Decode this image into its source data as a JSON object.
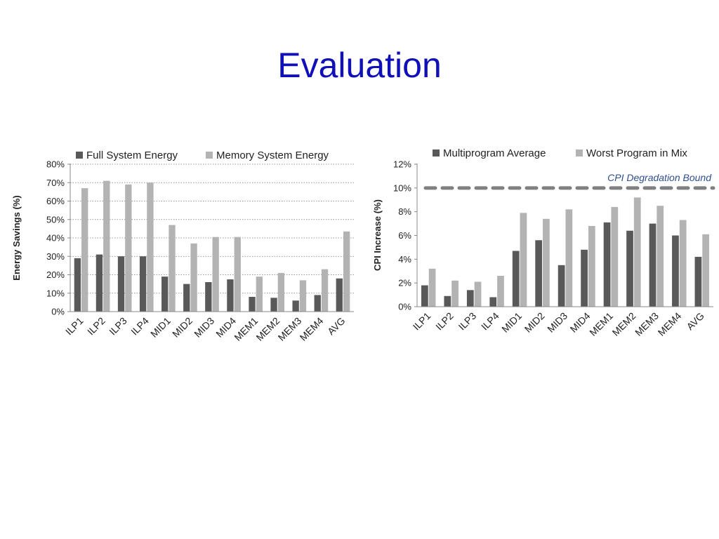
{
  "slide": {
    "title": "Evaluation"
  },
  "chart_data": [
    {
      "type": "bar",
      "categories": [
        "ILP1",
        "ILP2",
        "ILP3",
        "ILP4",
        "MID1",
        "MID2",
        "MID3",
        "MID4",
        "MEM1",
        "MEM2",
        "MEM3",
        "MEM4",
        "AVG"
      ],
      "series": [
        {
          "name": "Full System Energy",
          "color": "#595959",
          "values": [
            29,
            31,
            30,
            30,
            19,
            15,
            16,
            17.5,
            8,
            7.5,
            6,
            9,
            18
          ]
        },
        {
          "name": "Memory System Energy",
          "color": "#b3b3b3",
          "values": [
            67,
            71,
            69,
            70,
            47,
            37,
            40.5,
            40.5,
            19,
            21,
            17,
            23,
            43.5
          ]
        }
      ],
      "title": "",
      "xlabel": "",
      "ylabel": "Energy Savings (%)",
      "ylim": [
        0,
        80
      ],
      "yticks": [
        "0%",
        "10%",
        "20%",
        "30%",
        "40%",
        "50%",
        "60%",
        "70%",
        "80%"
      ],
      "grid": true,
      "legend": "top"
    },
    {
      "type": "bar",
      "categories": [
        "ILP1",
        "ILP2",
        "ILP3",
        "ILP4",
        "MID1",
        "MID2",
        "MID3",
        "MID4",
        "MEM1",
        "MEM2",
        "MEM3",
        "MEM4",
        "AVG"
      ],
      "series": [
        {
          "name": "Multiprogram Average",
          "color": "#595959",
          "values": [
            1.8,
            0.9,
            1.4,
            0.8,
            4.7,
            5.6,
            3.5,
            4.8,
            7.1,
            6.4,
            7.0,
            6.0,
            4.2
          ]
        },
        {
          "name": "Worst Program in Mix",
          "color": "#b3b3b3",
          "values": [
            3.2,
            2.2,
            2.1,
            2.6,
            7.9,
            7.4,
            8.2,
            6.8,
            8.4,
            9.2,
            8.5,
            7.3,
            6.1
          ]
        }
      ],
      "reference_line": {
        "label": "CPI Degradation Bound",
        "value": 10,
        "color": "#808080"
      },
      "title": "",
      "xlabel": "",
      "ylabel": "CPI Increase  (%)",
      "ylim": [
        0,
        12
      ],
      "yticks": [
        "0%",
        "2%",
        "4%",
        "6%",
        "8%",
        "10%",
        "12%"
      ],
      "grid": false,
      "legend": "top"
    }
  ]
}
